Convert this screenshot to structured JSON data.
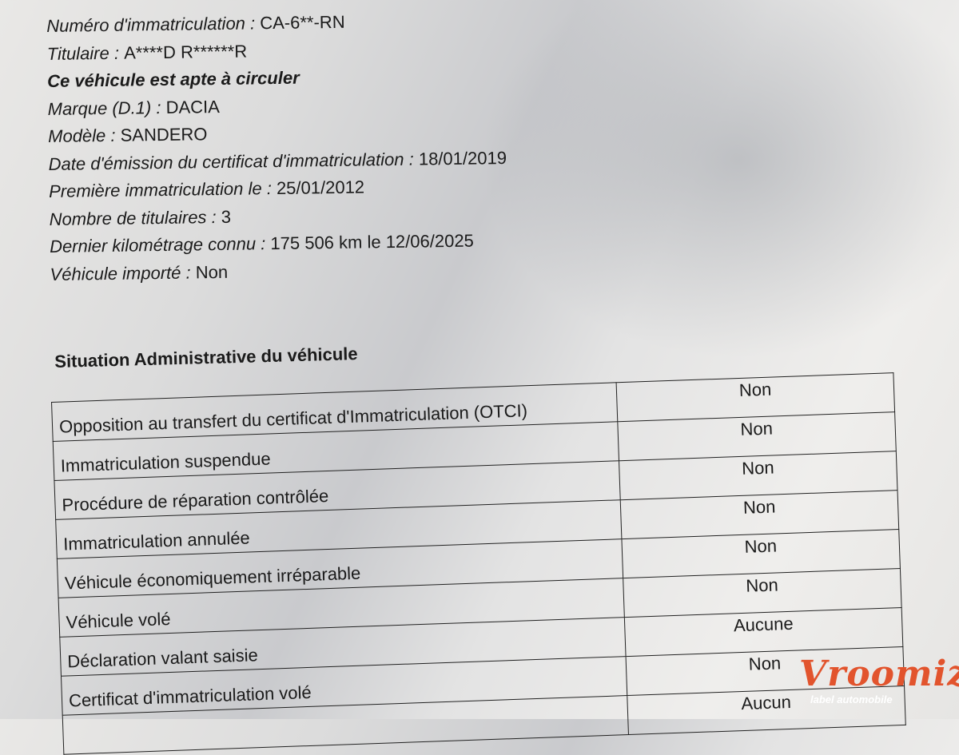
{
  "vehicle_info": [
    {
      "label": "Numéro d'immatriculation : ",
      "value": "CA-6**-RN"
    },
    {
      "label": "Titulaire : ",
      "value": "A****D R******R"
    },
    {
      "label": "Ce véhicule est apte à circuler",
      "value": ""
    },
    {
      "label": "Marque (D.1) : ",
      "value": "DACIA"
    },
    {
      "label": "Modèle : ",
      "value": "SANDERO"
    },
    {
      "label": "Date d'émission du certificat d'immatriculation : ",
      "value": "18/01/2019"
    },
    {
      "label": "Première immatriculation le  : ",
      "value": "25/01/2012"
    },
    {
      "label": "Nombre de titulaires : ",
      "value": "3"
    },
    {
      "label": "Dernier kilométrage connu : ",
      "value": "175 506 km le 12/06/2025"
    },
    {
      "label": "Véhicule importé : ",
      "value": "Non"
    }
  ],
  "admin_section": {
    "title": "Situation Administrative du véhicule",
    "rows": [
      {
        "label": "Opposition au transfert du certificat d'Immatriculation (OTCI)",
        "value": "Non"
      },
      {
        "label": "Immatriculation suspendue",
        "value": "Non"
      },
      {
        "label": "Procédure de réparation contrôlée",
        "value": "Non"
      },
      {
        "label": "Immatriculation annulée",
        "value": "Non"
      },
      {
        "label": "Véhicule économiquement irréparable",
        "value": "Non"
      },
      {
        "label": "Véhicule volé",
        "value": "Non"
      },
      {
        "label": "Déclaration valant saisie",
        "value": "Aucune"
      },
      {
        "label": "Certificat d'immatriculation volé",
        "value": "Non"
      },
      {
        "label": "",
        "value": "Aucun"
      }
    ]
  },
  "watermark": {
    "brand": "Vroomiz",
    "tagline": "label automobile",
    "color": "#e2542d"
  }
}
